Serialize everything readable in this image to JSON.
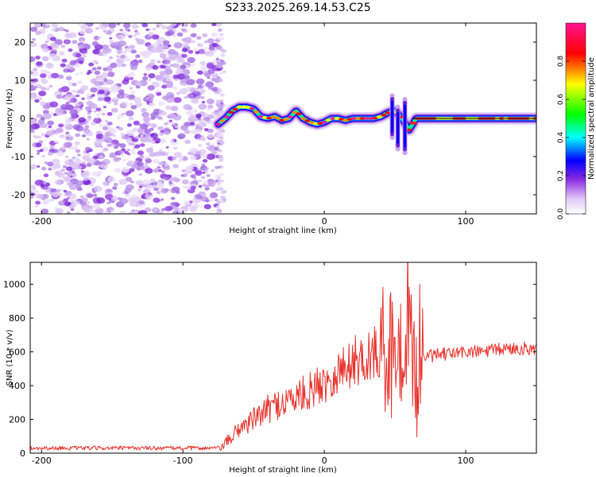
{
  "title": "S233.2025.269.14.53.C25",
  "chart_data": [
    {
      "type": "heatmap",
      "title": "S233.2025.269.14.53.C25",
      "xlabel": "Height of straight line (km)",
      "ylabel": "Frequency (Hz)",
      "xlim": [
        -208,
        150
      ],
      "ylim": [
        -25,
        25
      ],
      "xticks": [
        -200,
        -100,
        0,
        100
      ],
      "xtick_labels": [
        "-200",
        "-100",
        "0",
        "100"
      ],
      "yticks": [
        -20,
        -10,
        0,
        10,
        20
      ],
      "ytick_labels": [
        "-20",
        "-10",
        "0",
        "10",
        "20"
      ],
      "colorbar": {
        "label": "Normalized spectral amplitude",
        "range": [
          0,
          1
        ],
        "ticks": [
          0.0,
          0.2,
          0.4,
          0.6,
          0.8
        ],
        "tick_labels": [
          "0.0",
          "0.2",
          "0.4",
          "0.6",
          "0.8"
        ],
        "colors": [
          "#ffffff",
          "#8a2be2",
          "#0000ff",
          "#00ffff",
          "#00ff00",
          "#ffff00",
          "#ff0000",
          "#ff1493"
        ]
      },
      "noise_region": {
        "x": [
          -208,
          -73
        ],
        "amplitude": "0.0-0.15"
      },
      "signal_track": {
        "x": [
          -75,
          -70,
          -65,
          -60,
          -55,
          -50,
          -45,
          -40,
          -35,
          -30,
          -25,
          -20,
          -15,
          -10,
          -5,
          0,
          5,
          10,
          15,
          20,
          25,
          30,
          35,
          40,
          45,
          50,
          55,
          60,
          65,
          70,
          80,
          90,
          100,
          110,
          120,
          130,
          140,
          150
        ],
        "y": [
          -1.5,
          0,
          2,
          3,
          3,
          2.5,
          0.5,
          0,
          0.5,
          -0.5,
          0,
          2,
          0,
          -1,
          -1.5,
          -1,
          0,
          0,
          -0.5,
          0,
          0,
          0,
          0,
          0.5,
          1.5,
          2,
          0,
          -3,
          0,
          0,
          0,
          0,
          0,
          0,
          0,
          0,
          0,
          0
        ],
        "amplitude": "0.4-0.9"
      }
    },
    {
      "type": "line",
      "title": "",
      "xlabel": "Height of straight line (km)",
      "ylabel": "SNR (10 * v/v)",
      "xlim": [
        -208,
        150
      ],
      "ylim": [
        0,
        1130
      ],
      "xticks": [
        -200,
        -100,
        0,
        100
      ],
      "xtick_labels": [
        "-200",
        "-100",
        "0",
        "100"
      ],
      "yticks": [
        0,
        200,
        400,
        600,
        800,
        1000
      ],
      "ytick_labels": [
        "0",
        "200",
        "400",
        "600",
        "800",
        "1000"
      ],
      "color": "#e8322c",
      "series": [
        {
          "name": "SNR",
          "x": [
            -208,
            -150,
            -100,
            -73,
            -65,
            -60,
            -50,
            -40,
            -30,
            -20,
            -10,
            0,
            10,
            20,
            30,
            40,
            45,
            50,
            55,
            58,
            60,
            65,
            68,
            70,
            80,
            90,
            100,
            110,
            120,
            130,
            140,
            150
          ],
          "y": [
            30,
            30,
            30,
            30,
            100,
            150,
            200,
            260,
            300,
            330,
            370,
            420,
            480,
            540,
            570,
            600,
            650,
            700,
            750,
            900,
            700,
            450,
            600,
            570,
            580,
            590,
            600,
            600,
            610,
            620,
            620,
            620
          ]
        }
      ]
    }
  ]
}
